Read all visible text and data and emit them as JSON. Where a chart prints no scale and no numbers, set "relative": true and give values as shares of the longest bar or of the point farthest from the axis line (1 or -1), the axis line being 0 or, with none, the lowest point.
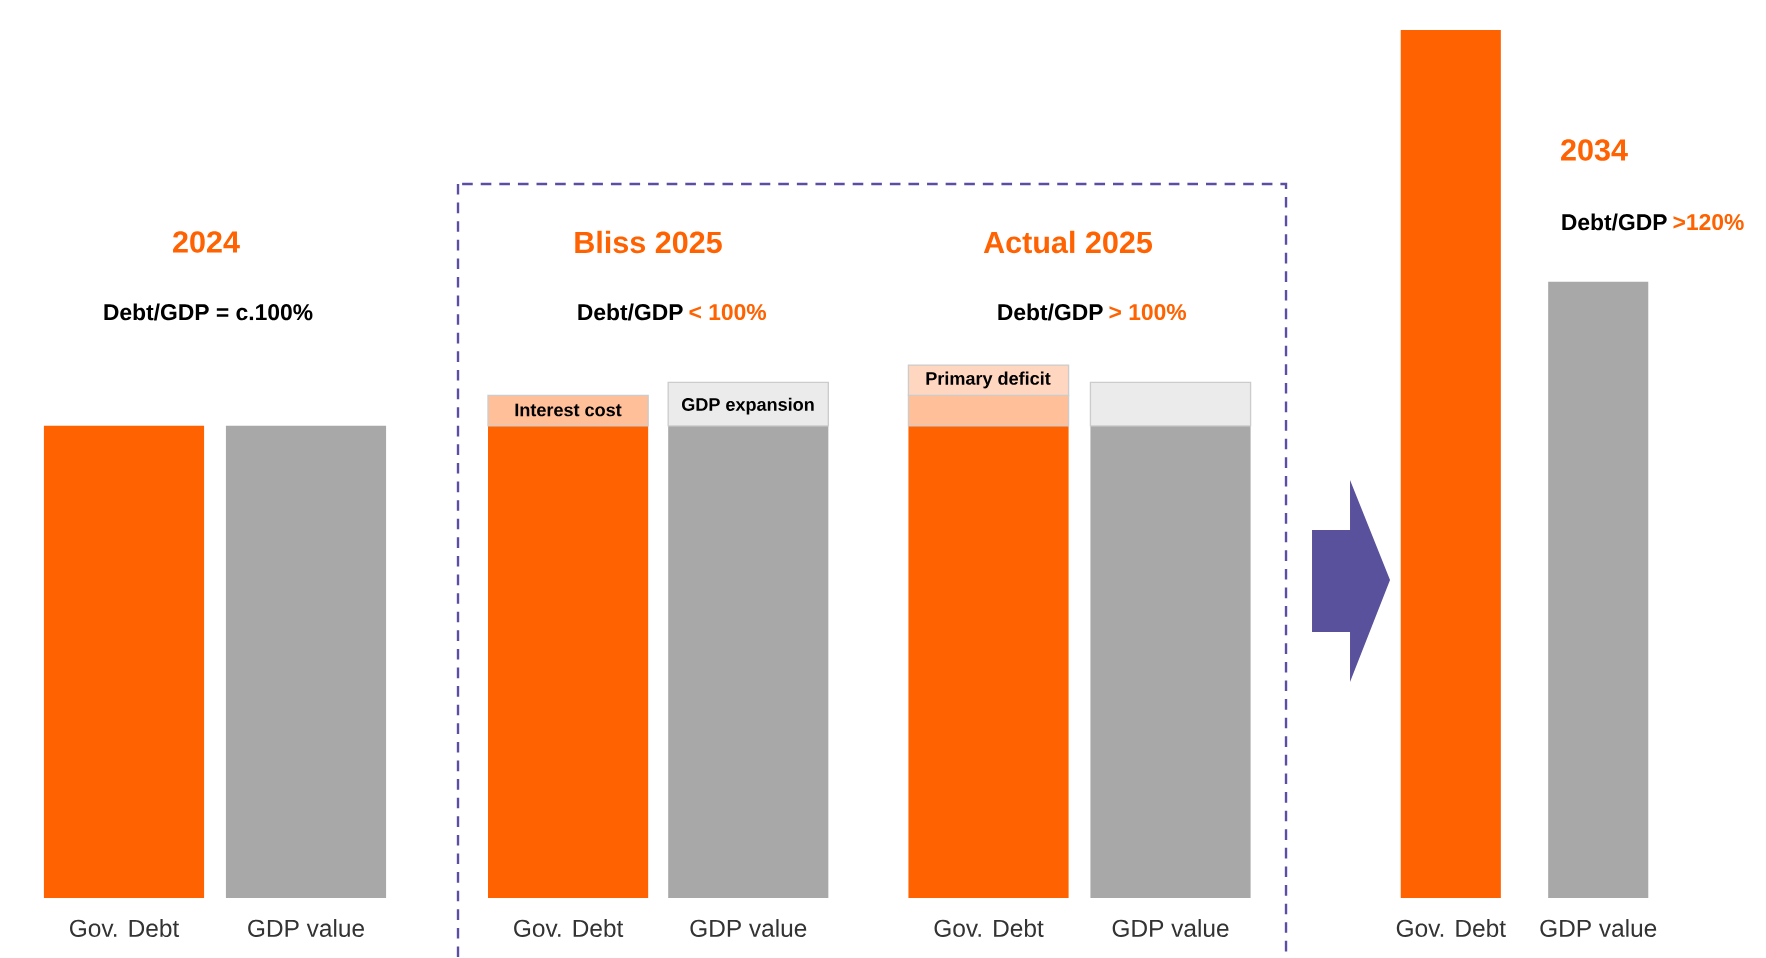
{
  "chart_data": {
    "type": "bar",
    "stacked": true,
    "relative": true,
    "categories": [
      "Gov. Debt",
      "GDP value",
      "Gov. Debt",
      "GDP value",
      "Gov. Debt",
      "GDP value",
      "Gov. Debt",
      "GDP value"
    ],
    "series": [
      {
        "values": [
          0.544,
          0.544,
          0.544,
          0.544,
          0.544,
          0.544,
          1.0,
          0.71
        ],
        "colors": [
          "#ff6200",
          "#a8a8a8",
          "#ff6200",
          "#a8a8a8",
          "#ff6200",
          "#a8a8a8",
          "#ff6200",
          "#a8a8a8"
        ]
      },
      {
        "values": [
          null,
          null,
          0.035,
          0.05,
          0.035,
          0.05,
          null,
          null
        ],
        "colors": [
          "#ffbf99",
          "#ebebeb",
          "#ffbf99",
          "#ebebeb",
          "#ffbf99",
          "#ebebeb",
          "#ffbf99",
          "#ebebeb"
        ]
      },
      {
        "values": [
          null,
          null,
          null,
          null,
          0.035,
          null,
          null,
          null
        ],
        "colors": [
          "#ffd6bf",
          "#ffd6bf",
          "#ffd6bf",
          "#ffd6bf",
          "#ffd6bf",
          "#ffd6bf",
          "#ffd6bf",
          "#ffd6bf"
        ]
      }
    ],
    "annotations": [
      "2024",
      "Debt/GDP = c.100%",
      "Bliss 2025",
      "Debt/GDP",
      "< 100%",
      "Actual 2025",
      "Debt/GDP",
      "> 100%",
      "2034",
      "Debt/GDP",
      ">120%",
      "Interest cost",
      "GDP expansion",
      "Primary deficit"
    ]
  }
}
